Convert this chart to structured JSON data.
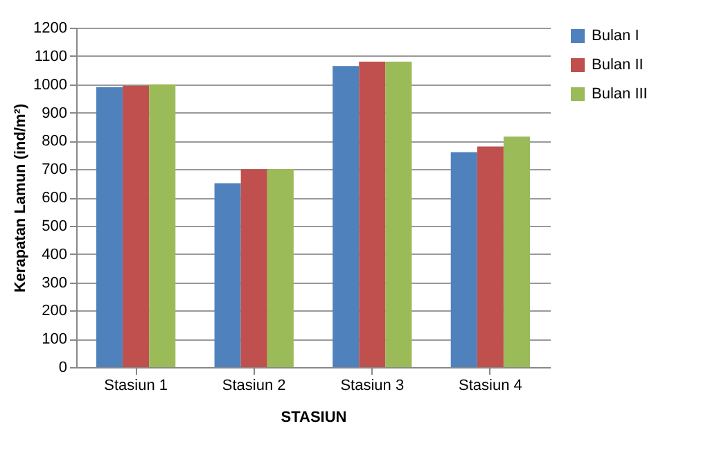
{
  "chart_data": {
    "type": "bar",
    "xlabel": "STASIUN",
    "ylabel": "Kerapatan Lamun (ind/m²)",
    "categories": [
      "Stasiun 1",
      "Stasiun 2",
      "Stasiun 3",
      "Stasiun 4"
    ],
    "series": [
      {
        "name": "Bulan I",
        "color": "#4f81bd",
        "values": [
          990,
          650,
          1065,
          760
        ]
      },
      {
        "name": "Bulan II",
        "color": "#c0504d",
        "values": [
          995,
          700,
          1080,
          780
        ]
      },
      {
        "name": "Bulan III",
        "color": "#9bbb59",
        "values": [
          1000,
          700,
          1080,
          815
        ]
      }
    ],
    "ylim": [
      0,
      1200
    ],
    "yticks": [
      0,
      100,
      200,
      300,
      400,
      500,
      600,
      700,
      800,
      900,
      1000,
      1100,
      1200
    ],
    "grid": "y",
    "legend": "right"
  }
}
